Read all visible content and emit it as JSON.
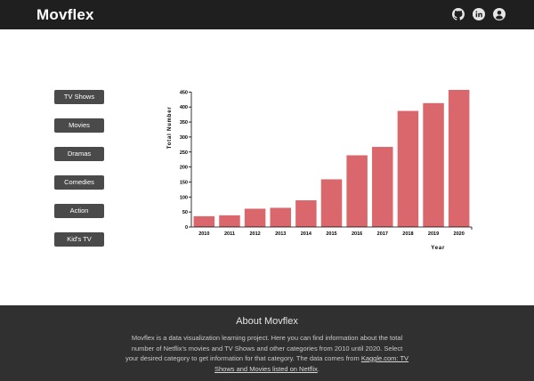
{
  "header": {
    "brand": "Movflex",
    "icons": [
      "github-icon",
      "linkedin-icon",
      "user-icon"
    ]
  },
  "categories": [
    "TV Shows",
    "Movies",
    "Dramas",
    "Comedies",
    "Action",
    "Kid's TV"
  ],
  "chart_data": {
    "type": "bar",
    "categories": [
      "2010",
      "2011",
      "2012",
      "2013",
      "2014",
      "2015",
      "2016",
      "2017",
      "2018",
      "2019",
      "2020"
    ],
    "values": [
      36,
      39,
      61,
      64,
      89,
      159,
      239,
      267,
      387,
      413,
      457
    ],
    "xlabel": "Year",
    "ylabel": "Total Number",
    "ylim": [
      0,
      460
    ],
    "yticks": [
      0,
      50,
      100,
      150,
      200,
      250,
      300,
      350,
      400,
      450
    ],
    "bar_color": "#d9676b",
    "grid": false
  },
  "footer": {
    "title": "About Movflex",
    "text": "Movflex is a data visualization learning project. Here you can find information about the total number of Netflix's movies and TV Shows and other categories from 2010 until 2020. Select your desired category to get information for that category. The data comes from ",
    "link_text": "Kaggle.com: TV Shows and Movies listed on Netflix",
    "text_end": "."
  },
  "colors": {
    "topbar": "#1f1f1f",
    "button": "#4a4a4a",
    "footer": "#303030",
    "bar": "#d9676b"
  }
}
